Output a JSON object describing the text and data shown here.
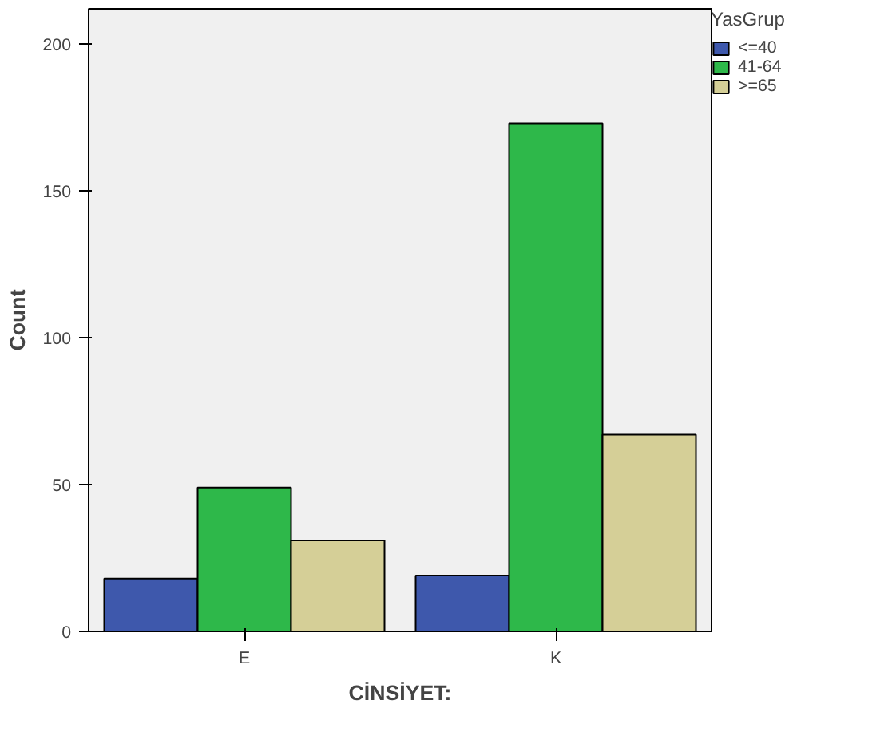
{
  "chart_data": {
    "type": "bar",
    "categories": [
      "E",
      "K"
    ],
    "xlabel": "CİNSİYET:",
    "ylabel": "Count",
    "legend_title": "YasGrup",
    "ylim": [
      0,
      212
    ],
    "yticks": [
      0,
      50,
      100,
      150,
      200
    ],
    "grid": false,
    "legend": "top right",
    "series": [
      {
        "name": "<=40",
        "color": "#3e58ac",
        "values": [
          18,
          19
        ]
      },
      {
        "name": "41-64",
        "color": "#2eb84a",
        "values": [
          49,
          173
        ]
      },
      {
        "name": ">=65",
        "color": "#d5cf97",
        "values": [
          31,
          67
        ]
      }
    ]
  }
}
